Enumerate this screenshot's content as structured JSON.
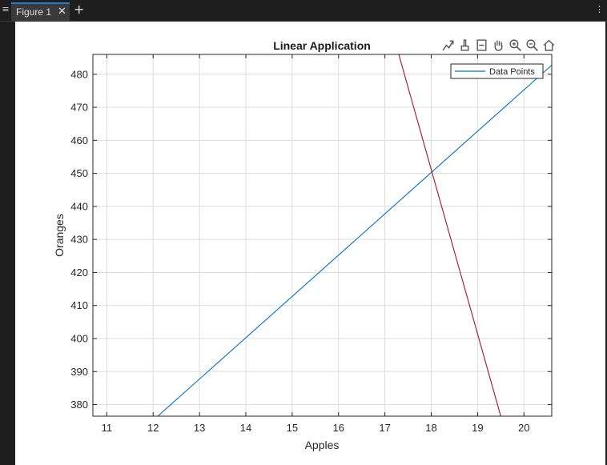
{
  "tabs": [
    {
      "label": "Figure 1",
      "close_glyph": "✕"
    }
  ],
  "add_tab_glyph": "+",
  "toolbar_icons": [
    "data-tips-icon",
    "brush-icon",
    "legend-toggle-icon",
    "pan-hand-icon",
    "zoom-in-icon",
    "zoom-out-icon",
    "home-icon"
  ],
  "chart_data": {
    "type": "line",
    "title": "Linear Application",
    "xlabel": "Apples",
    "ylabel": "Oranges",
    "xlim": [
      10.7,
      20.6
    ],
    "ylim": [
      376.5,
      486
    ],
    "xticks": [
      11,
      12,
      13,
      14,
      15,
      16,
      17,
      18,
      19,
      20
    ],
    "yticks": [
      380,
      390,
      400,
      410,
      420,
      430,
      440,
      450,
      460,
      470,
      480
    ],
    "xtick_labels": [
      "11",
      "12",
      "13",
      "14",
      "15",
      "16",
      "17",
      "18",
      "19",
      "20"
    ],
    "ytick_labels": [
      "380",
      "390",
      "400",
      "410",
      "420",
      "430",
      "440",
      "450",
      "460",
      "470",
      "480"
    ],
    "grid": true,
    "legend_position": "top-right",
    "series": [
      {
        "name": "Data Points",
        "x": [
          12.1,
          20.6
        ],
        "y": [
          376.5,
          482.75
        ],
        "color": "#0072bd",
        "in_legend": true
      },
      {
        "x": [
          17.3,
          19.5
        ],
        "y": [
          486,
          376.5
        ],
        "color": "#a2142f",
        "in_legend": false
      }
    ]
  }
}
